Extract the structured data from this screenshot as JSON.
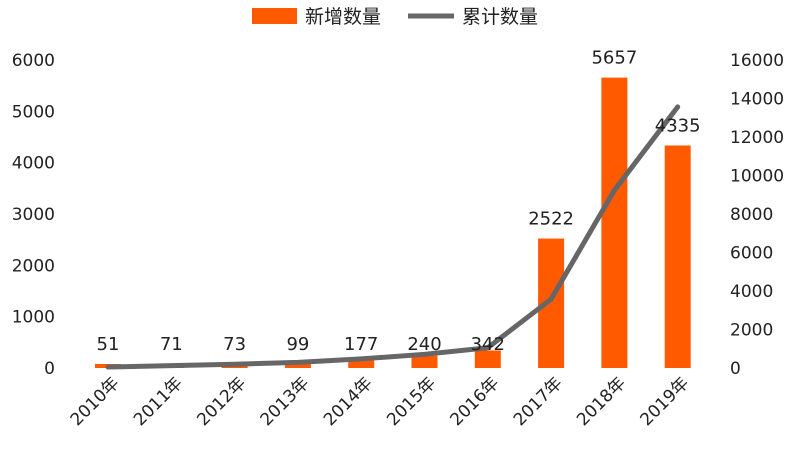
{
  "chart_data": {
    "type": "bar",
    "categories": [
      "2010年",
      "2011年",
      "2012年",
      "2013年",
      "2014年",
      "2015年",
      "2016年",
      "2017年",
      "2018年",
      "2019年"
    ],
    "series": [
      {
        "name": "新增数量",
        "type": "bar",
        "axis": "left",
        "color": "#ff5a00",
        "values": [
          51,
          71,
          73,
          99,
          177,
          240,
          342,
          2522,
          5657,
          4335
        ]
      },
      {
        "name": "累计数量",
        "type": "line",
        "axis": "right",
        "color": "#666666",
        "values": [
          51,
          122,
          195,
          294,
          471,
          711,
          1053,
          3575,
          9232,
          13567
        ]
      }
    ],
    "data_labels": [
      "51",
      "71",
      "73",
      "99",
      "177",
      "240",
      "342",
      "2522",
      "5657",
      "4335"
    ],
    "y_left": {
      "ylim": [
        0,
        6000
      ],
      "ticks": [
        "0",
        "1000",
        "2000",
        "3000",
        "4000",
        "5000",
        "6000"
      ]
    },
    "y_right": {
      "ylim": [
        0,
        16000
      ],
      "ticks": [
        "0",
        "2000",
        "4000",
        "6000",
        "8000",
        "10000",
        "12000",
        "14000",
        "16000"
      ]
    },
    "legend_position": "top",
    "grid": false
  }
}
